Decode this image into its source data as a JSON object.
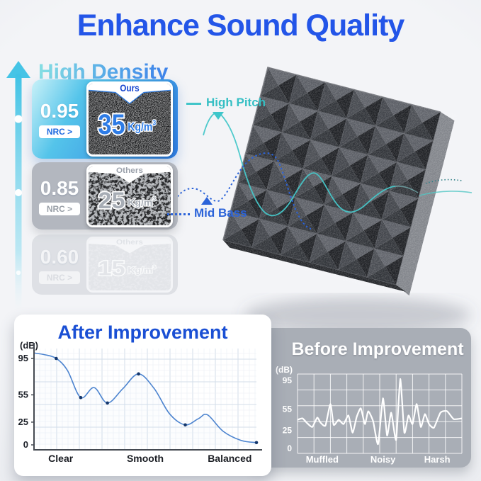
{
  "title": "Enhance Sound Quality",
  "density": {
    "heading": "High Density",
    "cards": [
      {
        "nrc": "0.95",
        "nrc_label": "NRC >",
        "ribbon": "Ours",
        "value": "35",
        "unit": "Kg/m",
        "unit_sup": "3"
      },
      {
        "nrc": "0.85",
        "nrc_label": "NRC >",
        "ribbon": "Others",
        "value": "25",
        "unit": "Kg/m",
        "unit_sup": "3"
      },
      {
        "nrc": "0.60",
        "nrc_label": "NRC >",
        "ribbon": "Others",
        "value": "15",
        "unit": "Kg/m",
        "unit_sup": "3"
      }
    ]
  },
  "annotations": {
    "high_pitch": "High Pitch",
    "mid_bass": "Mid Bass"
  },
  "colors": {
    "accent_blue": "#2355e8",
    "teal": "#3fc3c8",
    "mid_bass_blue": "#2b63d9",
    "card_gradient": [
      "#c9f1f8",
      "#54c4ea",
      "#2e7ce2"
    ],
    "others_gray": "#b3b7bf",
    "after_line": "#4d84cf",
    "after_fill_top": "#7ed4d9",
    "after_fill_mid": "#6cb2ef",
    "before_card": "#a9aeb6",
    "before_fill_red": "#c0211b",
    "foam_dark": "#3a3d43"
  },
  "chart_data": [
    {
      "type": "area",
      "title": "After Improvement",
      "ylabel": "(dB)",
      "yticks": [
        95,
        55,
        25,
        0
      ],
      "ylim": [
        0,
        105
      ],
      "x": [
        0,
        0.05,
        0.1,
        0.15,
        0.21,
        0.27,
        0.33,
        0.4,
        0.47,
        0.54,
        0.61,
        0.68,
        0.74,
        0.78,
        0.85,
        0.93,
        1.0
      ],
      "values": [
        101,
        99,
        95,
        82,
        52,
        63,
        46,
        62,
        78,
        62,
        34,
        22,
        29,
        33,
        15,
        5,
        2.5
      ],
      "points": [
        [
          0.1,
          95
        ],
        [
          0.21,
          52
        ],
        [
          0.33,
          46
        ],
        [
          0.47,
          78
        ],
        [
          0.68,
          22
        ],
        [
          1.0,
          2.5
        ]
      ],
      "categories": [
        "Clear",
        "Smooth",
        "Balanced"
      ],
      "cat_x": [
        0.12,
        0.5,
        0.88
      ],
      "grid": true,
      "legend": false
    },
    {
      "type": "line",
      "title": "Before Improvement",
      "ylabel": "(dB)",
      "yticks": [
        95,
        55,
        25,
        0
      ],
      "ylim": [
        0,
        105
      ],
      "x": [
        0,
        0.03,
        0.06,
        0.09,
        0.12,
        0.14,
        0.17,
        0.2,
        0.22,
        0.25,
        0.28,
        0.31,
        0.335,
        0.36,
        0.385,
        0.41,
        0.43,
        0.46,
        0.49,
        0.52,
        0.545,
        0.57,
        0.6,
        0.625,
        0.65,
        0.675,
        0.7,
        0.725,
        0.75,
        0.775,
        0.8,
        0.83,
        0.87,
        0.91,
        0.95,
        1.0
      ],
      "values": [
        40,
        42,
        35,
        30,
        43,
        36,
        32,
        62,
        33,
        40,
        34,
        46,
        22,
        44,
        56,
        34,
        52,
        38,
        6,
        70,
        18,
        50,
        12,
        97,
        22,
        46,
        34,
        62,
        30,
        48,
        34,
        29,
        50,
        52,
        41,
        42
      ],
      "categories": [
        "Muffled",
        "Noisy",
        "Harsh"
      ],
      "cat_x": [
        0.15,
        0.52,
        0.85
      ],
      "grid": true,
      "legend": false
    }
  ]
}
